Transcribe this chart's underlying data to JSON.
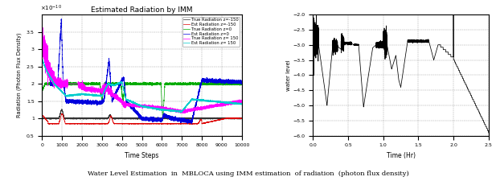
{
  "left_title": "Estimated Radiation by IMM",
  "left_xlabel": "Time Steps",
  "left_ylabel": "Radiation (Photon Flux Density)",
  "left_xlim": [
    0,
    10000
  ],
  "left_ylim": [
    5e-11,
    4e-10
  ],
  "left_xticks": [
    0,
    1000,
    2000,
    3000,
    4000,
    5000,
    6000,
    7000,
    8000,
    9000,
    10000
  ],
  "left_ytick_vals": [
    5e-11,
    1e-10,
    1.5e-10,
    2e-10,
    2.5e-10,
    3e-10,
    3.5e-10
  ],
  "left_ytick_labels": [
    "0.5",
    "1",
    "1.5",
    "2",
    "2.5",
    "3",
    "3.5"
  ],
  "right_xlabel": "Time (Hr)",
  "right_ylabel": "water level",
  "right_xlim": [
    0,
    2.5
  ],
  "right_ylim": [
    -6,
    -2
  ],
  "right_yticks": [
    -6,
    -5.5,
    -5,
    -4.5,
    -4,
    -3.5,
    -3,
    -2.5,
    -2
  ],
  "right_xticks": [
    0,
    0.5,
    1,
    1.5,
    2,
    2.5
  ],
  "caption": "Water Level Estimation  in  MBLOCA using IMM estimation  of radiation  (photon flux density)",
  "legend_entries": [
    {
      "label": "True Radiation z=-150",
      "color": "#333333"
    },
    {
      "label": "Est Radiation z=-150",
      "color": "#dd0000"
    },
    {
      "label": "True Radiation z=0",
      "color": "#00aa00"
    },
    {
      "label": "Est Radiation z=0",
      "color": "#0000dd"
    },
    {
      "label": "True Radiation z= 150",
      "color": "#ff00ff"
    },
    {
      "label": "Est Radiation z= 150",
      "color": "#00cccc"
    }
  ]
}
